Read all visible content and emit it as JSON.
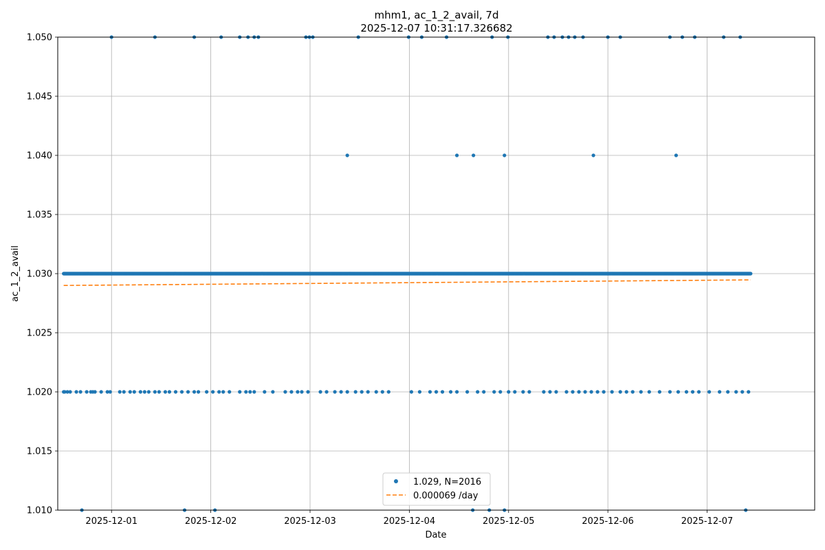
{
  "chart_data": {
    "type": "scatter",
    "title": "mhm1, ac_1_2_avail, 7d",
    "subtitle": "2025-12-07 10:31:17.326682",
    "xlabel": "Date",
    "ylabel": "ac_1_2_avail",
    "x_ticks": [
      "2025-12-01",
      "2025-12-02",
      "2025-12-03",
      "2025-12-04",
      "2025-12-05",
      "2025-12-06",
      "2025-12-07"
    ],
    "y_ticks": [
      "1.010",
      "1.015",
      "1.020",
      "1.025",
      "1.030",
      "1.035",
      "1.040",
      "1.045",
      "1.050"
    ],
    "xlim": [
      "2025-11-30T11:00",
      "2025-12-08T02:00"
    ],
    "ylim": [
      1.01,
      1.05
    ],
    "grid": true,
    "legend_position": "lower center",
    "series": [
      {
        "name": "1.029, N=2016",
        "kind": "points",
        "color": "#1f77b4",
        "x_range": [
          "2025-11-30T12:26",
          "2025-12-07T10:31"
        ],
        "baseline_value": 1.03,
        "N": 2016,
        "x_at_1020": [
          "2025-11-30T12:26",
          "2025-11-30T12:40",
          "2025-11-30T13:20",
          "2025-11-30T14:00",
          "2025-11-30T15:30",
          "2025-11-30T16:30",
          "2025-11-30T18:00",
          "2025-11-30T19:00",
          "2025-11-30T19:30",
          "2025-11-30T20:00",
          "2025-11-30T21:30",
          "2025-11-30T23:00",
          "2025-11-30T23:40",
          "2025-12-01T02:00",
          "2025-12-01T03:00",
          "2025-12-01T04:30",
          "2025-12-01T05:30",
          "2025-12-01T07:00",
          "2025-12-01T08:00",
          "2025-12-01T09:00",
          "2025-12-01T10:30",
          "2025-12-01T11:30",
          "2025-12-01T13:00",
          "2025-12-01T14:00",
          "2025-12-01T15:30",
          "2025-12-01T17:00",
          "2025-12-01T18:30",
          "2025-12-01T20:00",
          "2025-12-01T21:00",
          "2025-12-01T23:00",
          "2025-12-02T00:30",
          "2025-12-02T02:00",
          "2025-12-02T03:00",
          "2025-12-02T04:30",
          "2025-12-02T07:00",
          "2025-12-02T08:30",
          "2025-12-02T09:30",
          "2025-12-02T10:30",
          "2025-12-02T13:00",
          "2025-12-02T15:00",
          "2025-12-02T18:00",
          "2025-12-02T19:30",
          "2025-12-02T21:00",
          "2025-12-02T22:00",
          "2025-12-02T23:30",
          "2025-12-03T02:30",
          "2025-12-03T04:00",
          "2025-12-03T06:00",
          "2025-12-03T07:30",
          "2025-12-03T09:00",
          "2025-12-03T11:00",
          "2025-12-03T12:30",
          "2025-12-03T14:00",
          "2025-12-03T16:00",
          "2025-12-03T17:30",
          "2025-12-03T19:00",
          "2025-12-04T00:30",
          "2025-12-04T02:30",
          "2025-12-04T05:00",
          "2025-12-04T06:30",
          "2025-12-04T08:00",
          "2025-12-04T10:00",
          "2025-12-04T11:30",
          "2025-12-04T14:00",
          "2025-12-04T16:30",
          "2025-12-04T18:00",
          "2025-12-04T20:30",
          "2025-12-04T22:00",
          "2025-12-05T00:00",
          "2025-12-05T01:30",
          "2025-12-05T03:30",
          "2025-12-05T05:00",
          "2025-12-05T08:30",
          "2025-12-05T10:00",
          "2025-12-05T11:30",
          "2025-12-05T14:00",
          "2025-12-05T15:30",
          "2025-12-05T17:00",
          "2025-12-05T18:30",
          "2025-12-05T20:00",
          "2025-12-05T21:30",
          "2025-12-05T23:00",
          "2025-12-06T01:00",
          "2025-12-06T03:00",
          "2025-12-06T04:30",
          "2025-12-06T06:00",
          "2025-12-06T08:00",
          "2025-12-06T10:00",
          "2025-12-06T12:30",
          "2025-12-06T15:00",
          "2025-12-06T17:00",
          "2025-12-06T19:00",
          "2025-12-06T20:30",
          "2025-12-06T22:00",
          "2025-12-07T00:30",
          "2025-12-07T03:00",
          "2025-12-07T05:00",
          "2025-12-07T07:00",
          "2025-12-07T08:30",
          "2025-12-07T10:00"
        ],
        "x_at_1040": [
          "2025-12-03T09:00",
          "2025-12-04T11:30",
          "2025-12-04T15:30",
          "2025-12-04T23:00",
          "2025-12-05T20:30",
          "2025-12-06T16:30"
        ],
        "x_at_1050": [
          "2025-12-01T00:00",
          "2025-12-01T10:30",
          "2025-12-01T20:00",
          "2025-12-02T02:30",
          "2025-12-02T07:00",
          "2025-12-02T09:00",
          "2025-12-02T10:30",
          "2025-12-02T11:30",
          "2025-12-02T23:00",
          "2025-12-02T23:50",
          "2025-12-03T00:40",
          "2025-12-03T11:40",
          "2025-12-03T23:50",
          "2025-12-04T03:00",
          "2025-12-04T09:00",
          "2025-12-04T20:00",
          "2025-12-04T23:50",
          "2025-12-05T09:30",
          "2025-12-05T11:00",
          "2025-12-05T13:00",
          "2025-12-05T14:30",
          "2025-12-05T16:00",
          "2025-12-05T18:00",
          "2025-12-06T00:00",
          "2025-12-06T03:00",
          "2025-12-06T15:00",
          "2025-12-06T18:00",
          "2025-12-06T21:00",
          "2025-12-07T04:00",
          "2025-12-07T08:00"
        ],
        "x_at_1010": [
          "2025-11-30T16:50",
          "2025-12-01T17:40",
          "2025-12-02T01:00",
          "2025-12-04T15:20",
          "2025-12-04T19:20",
          "2025-12-04T23:00",
          "2025-12-07T09:20"
        ]
      },
      {
        "name": "0.000069 /day",
        "kind": "dashed-line",
        "color": "#ff7f0e",
        "x": [
          "2025-11-30T12:26",
          "2025-12-07T10:31"
        ],
        "y": [
          1.029,
          1.02947
        ]
      }
    ]
  }
}
